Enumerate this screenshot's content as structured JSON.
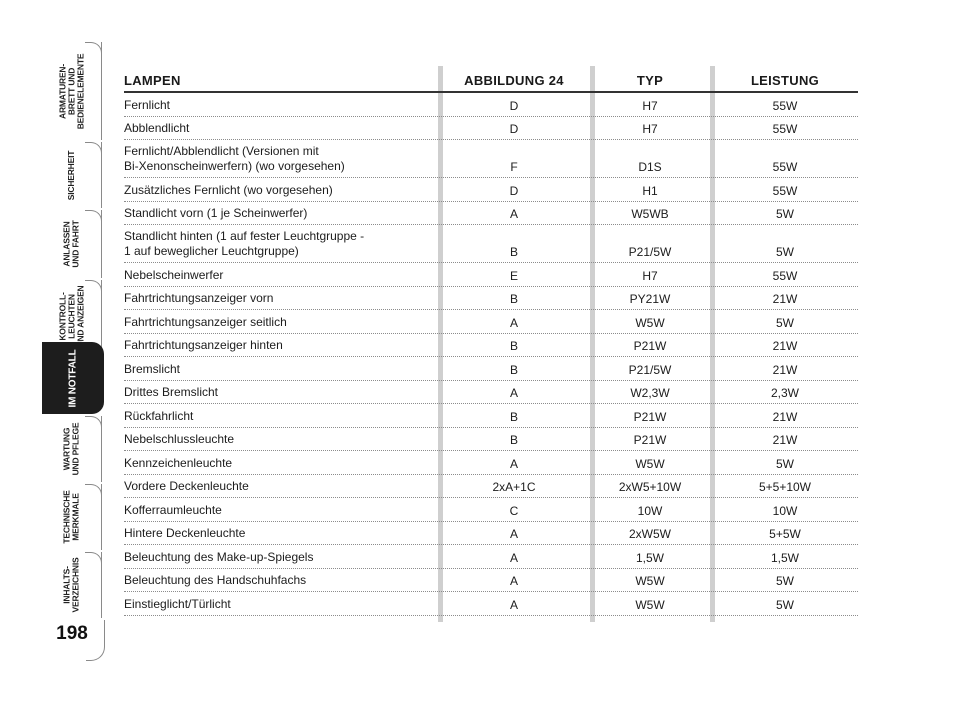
{
  "sidebar": {
    "tabs": [
      {
        "label": "ARMATUREN-\nBRETT UND\nBEDIENELEMENTE",
        "active": false
      },
      {
        "label": "SICHERHEIT",
        "active": false
      },
      {
        "label": "ANLASSEN\nUND FAHRT",
        "active": false
      },
      {
        "label": "KONTROLL-\nLEUCHTEN\nUND ANZEIGEN",
        "active": false
      },
      {
        "label": "IM NOTFALL",
        "active": true
      },
      {
        "label": "WARTUNG\nUND PFLEGE",
        "active": false
      },
      {
        "label": "TECHNISCHE\nMERKMALE",
        "active": false
      },
      {
        "label": "INHALTS-\nVERZEICHNIS",
        "active": false
      }
    ],
    "page_number": "198"
  },
  "table": {
    "headers": {
      "lamps": "LAMPEN",
      "figure": "ABBILDUNG 24",
      "type": "TYP",
      "power": "LEISTUNG"
    },
    "rows": [
      {
        "name": "Fernlicht",
        "figure": "D",
        "type": "H7",
        "power": "55W"
      },
      {
        "name": "Abblendlicht",
        "figure": "D",
        "type": "H7",
        "power": "55W"
      },
      {
        "name": "Fernlicht/Abblendlicht (Versionen mit\nBi-Xenonscheinwerfern) (wo vorgesehen)",
        "figure": "F",
        "type": "D1S",
        "power": "55W"
      },
      {
        "name": "Zusätzliches Fernlicht (wo vorgesehen)",
        "figure": "D",
        "type": "H1",
        "power": "55W"
      },
      {
        "name": "Standlicht vorn (1 je Scheinwerfer)",
        "figure": "A",
        "type": "W5WB",
        "power": "5W"
      },
      {
        "name": "Standlicht hinten (1 auf fester Leuchtgruppe -\n1 auf beweglicher Leuchtgruppe)",
        "figure": "B",
        "type": "P21/5W",
        "power": "5W"
      },
      {
        "name": "Nebelscheinwerfer",
        "figure": "E",
        "type": "H7",
        "power": "55W"
      },
      {
        "name": "Fahrtrichtungsanzeiger vorn",
        "figure": "B",
        "type": "PY21W",
        "power": "21W"
      },
      {
        "name": "Fahrtrichtungsanzeiger seitlich",
        "figure": "A",
        "type": "W5W",
        "power": "5W"
      },
      {
        "name": "Fahrtrichtungsanzeiger hinten",
        "figure": "B",
        "type": "P21W",
        "power": "21W"
      },
      {
        "name": "Bremslicht",
        "figure": "B",
        "type": "P21/5W",
        "power": "21W"
      },
      {
        "name": "Drittes Bremslicht",
        "figure": "A",
        "type": "W2,3W",
        "power": "2,3W"
      },
      {
        "name": "Rückfahrlicht",
        "figure": "B",
        "type": "P21W",
        "power": "21W"
      },
      {
        "name": "Nebelschlussleuchte",
        "figure": "B",
        "type": "P21W",
        "power": "21W"
      },
      {
        "name": "Kennzeichenleuchte",
        "figure": "A",
        "type": "W5W",
        "power": "5W"
      },
      {
        "name": "Vordere Deckenleuchte",
        "figure": "2xA+1C",
        "type": "2xW5+10W",
        "power": "5+5+10W"
      },
      {
        "name": "Kofferraumleuchte",
        "figure": "C",
        "type": "10W",
        "power": "10W"
      },
      {
        "name": "Hintere Deckenleuchte",
        "figure": "A",
        "type": "2xW5W",
        "power": "5+5W"
      },
      {
        "name": "Beleuchtung des Make-up-Spiegels",
        "figure": "A",
        "type": "1,5W",
        "power": "1,5W"
      },
      {
        "name": "Beleuchtung des Handschuhfachs",
        "figure": "A",
        "type": "W5W",
        "power": "5W"
      },
      {
        "name": "Einstieglicht/Türlicht",
        "figure": "A",
        "type": "W5W",
        "power": "5W"
      }
    ]
  }
}
